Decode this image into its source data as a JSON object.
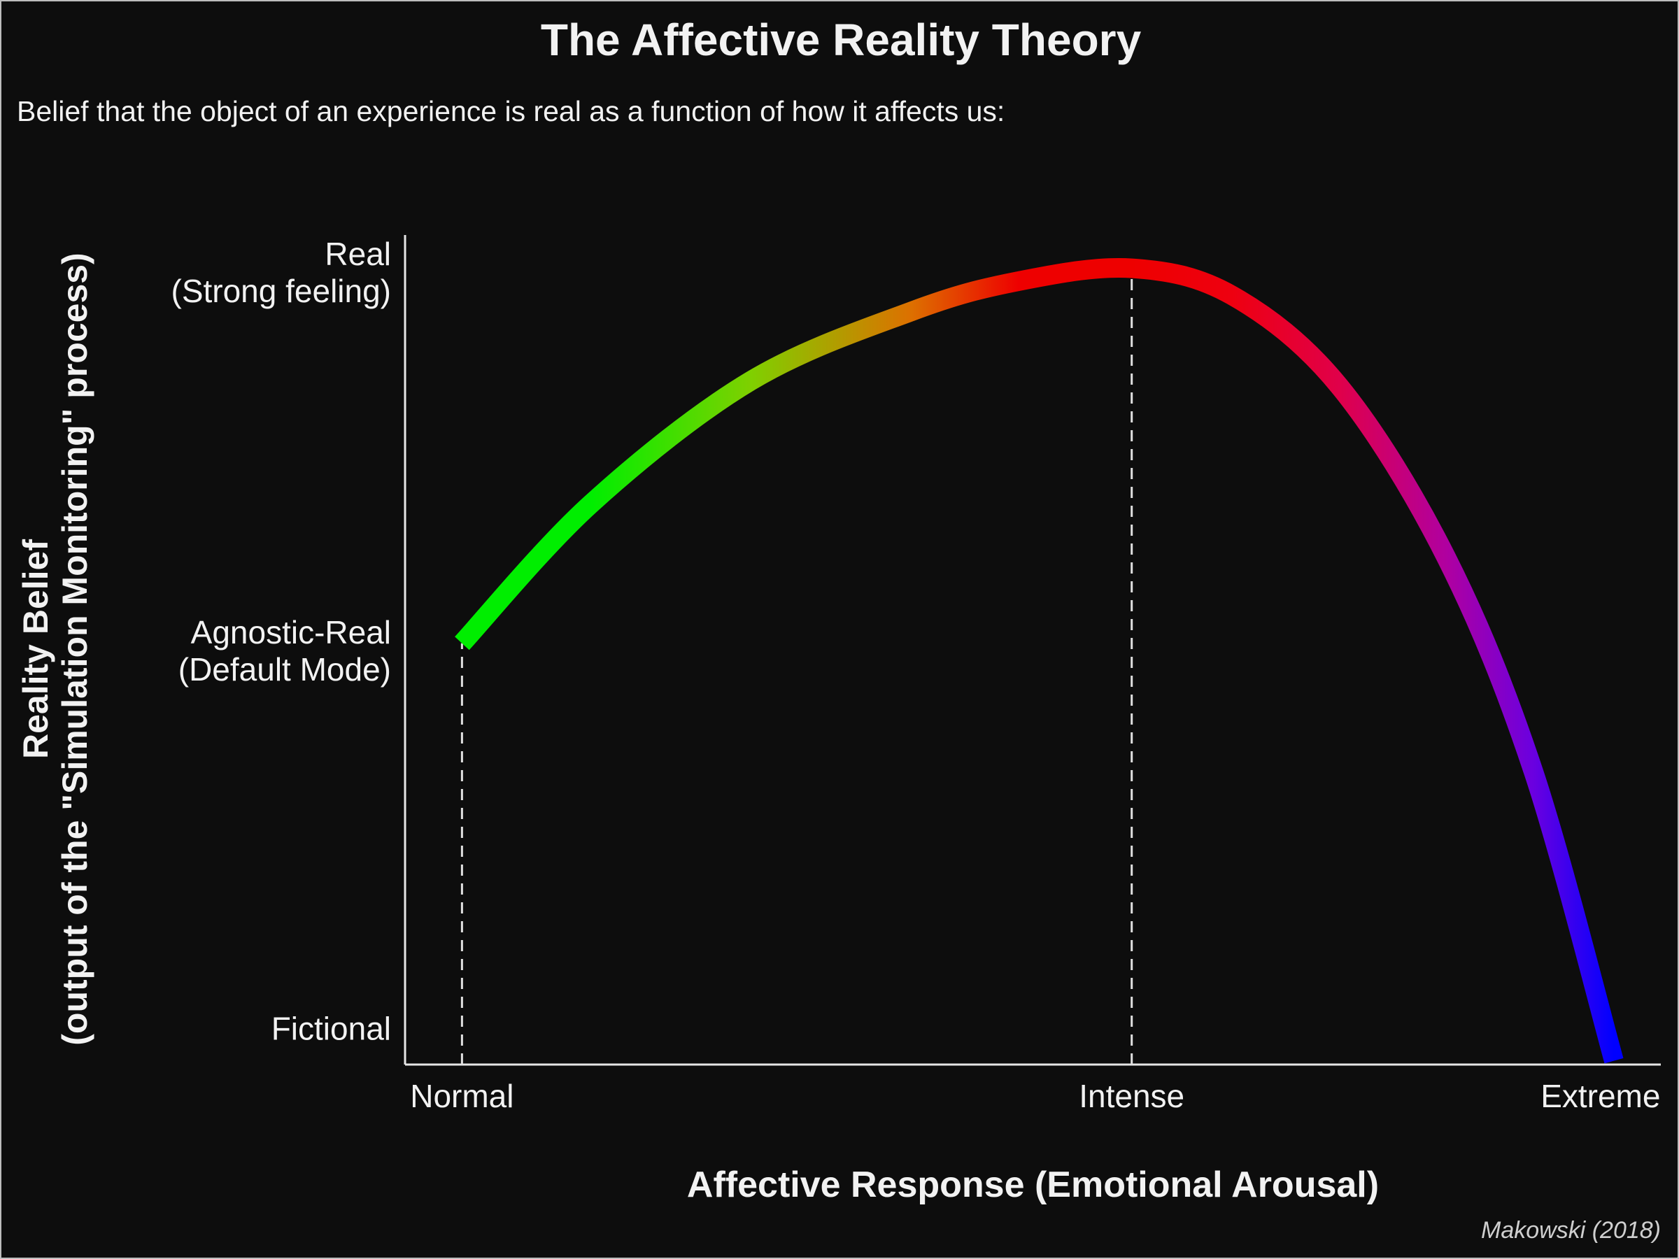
{
  "chart_data": {
    "type": "line",
    "title": "The Affective Reality Theory",
    "subtitle": "Belief that the object of an experience is real as a function of how it affects us:",
    "x_label": "Affective Response (Emotional Arousal)",
    "y_label": "Reality Belief\n(output of the \"Simulation Monitoring\" process)",
    "caption": "Makowski (2018)",
    "x": [
      0,
      1.92,
      4.31,
      6.71,
      8.31,
      10,
      11.5,
      13.1,
      14.7,
      16,
      17.2
    ],
    "series": [
      {
        "values": [
          51,
          69.4,
          85.7,
          94.9,
          98.9,
          100.6,
          97,
          85,
          62.3,
          34,
          -4.2
        ],
        "point_colors": [
          "#00ee00",
          "#00ee00",
          "#7fd000",
          "#dd7000",
          "#ee0000",
          "#ee0000",
          "#ee0010",
          "#e0004a",
          "#b000a0",
          "#6a00e0",
          "#0000ff"
        ]
      }
    ],
    "xlim": [
      -0.85,
      17.9
    ],
    "ylim": [
      -4.7,
      105
    ],
    "xticks": [
      {
        "value": 0,
        "label": "Normal"
      },
      {
        "value": 10,
        "label": "Intense"
      },
      {
        "value": 17,
        "label": "Extreme"
      }
    ],
    "yticks": [
      {
        "value": 0,
        "label": "Fictional"
      },
      {
        "value": 50,
        "label": "Agnostic-Real\n(Default Mode)"
      },
      {
        "value": 100,
        "label": "Real\n(Strong feeling)"
      }
    ],
    "drop_lines": true,
    "grid": false
  }
}
